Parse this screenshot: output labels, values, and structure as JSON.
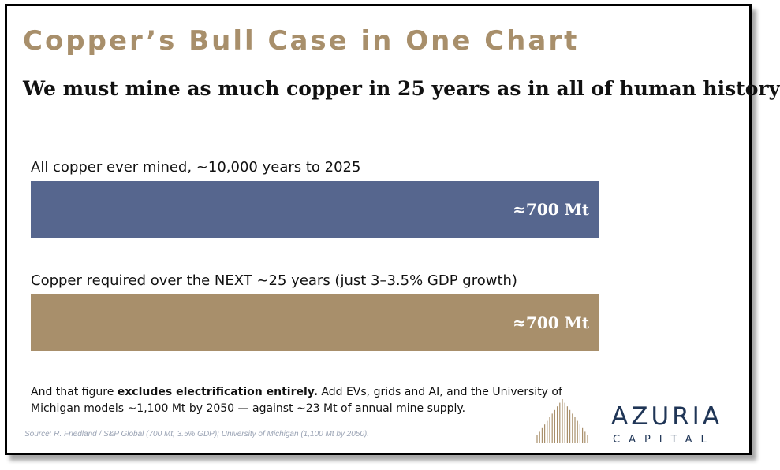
{
  "title": "Copper’s Bull Case in One Chart",
  "subtitle": "We must mine as much copper in 25 years as in all of human history",
  "chart_data": {
    "type": "bar",
    "orientation": "horizontal",
    "categories": [
      "All copper ever mined, ~10,000 years to 2025",
      "Copper required over the NEXT ~25 years (just 3–3.5% GDP growth)"
    ],
    "values": [
      700,
      700
    ],
    "value_labels": [
      "≈700 Mt",
      "≈700 Mt"
    ],
    "colors": [
      "#56668e",
      "#a88f6b"
    ],
    "unit": "Mt",
    "xlim": [
      0,
      700
    ],
    "grid": false
  },
  "note": {
    "part1": "And that figure ",
    "bold": "excludes electrification entirely.",
    "part2": "  Add EVs, grids and AI, and the University of Michigan models ~1,100 Mt by 2050 — against ~23 Mt of annual mine supply."
  },
  "source": "Source: R. Friedland / S&P Global (700 Mt, 3.5% GDP); University of Michigan (1,100 Mt by 2050).",
  "logo": {
    "name": "AZURIA",
    "sub": "CAPITAL",
    "icon": "sunburst-logo-icon",
    "colors": {
      "primary": "#1f3556",
      "accent": "#a88f6b"
    }
  }
}
